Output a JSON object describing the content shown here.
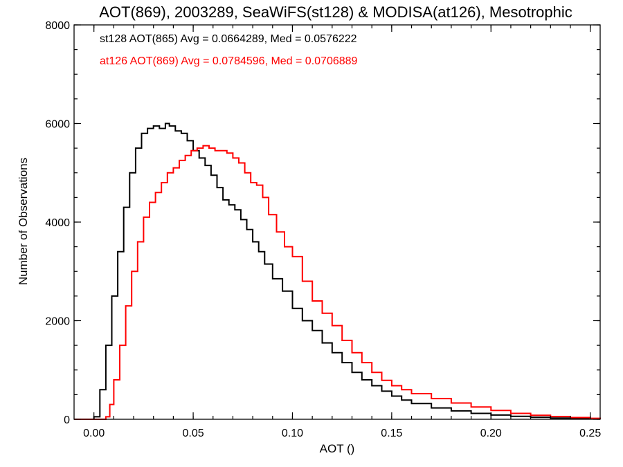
{
  "chart_data": {
    "type": "line",
    "title": "AOT(869), 2003289, SeaWiFS(st128) & MODISA(at126), Mesotrophic",
    "xlabel": "AOT ()",
    "ylabel": "Number of Observations",
    "xlim": [
      -0.01,
      0.255
    ],
    "ylim": [
      0,
      8000
    ],
    "xticks": [
      0.0,
      0.05,
      0.1,
      0.15,
      0.2,
      0.25
    ],
    "xtick_labels": [
      "0.00",
      "0.05",
      "0.10",
      "0.15",
      "0.20",
      "0.25"
    ],
    "yticks": [
      0,
      2000,
      4000,
      6000,
      8000
    ],
    "ytick_labels": [
      "0",
      "2000",
      "4000",
      "6000",
      "8000"
    ],
    "grid": false,
    "annotations": [
      {
        "text": "st128 AOT(865) Avg = 0.0664289, Med = 0.0576222",
        "color": "#000000"
      },
      {
        "text": "at126 AOT(869) Avg = 0.0784596, Med = 0.0706889",
        "color": "#ff0000"
      }
    ],
    "series": [
      {
        "color": "#000000",
        "style": "step",
        "x": [
          -0.01,
          0.0,
          0.003,
          0.006,
          0.009,
          0.012,
          0.015,
          0.018,
          0.021,
          0.024,
          0.027,
          0.03,
          0.033,
          0.036,
          0.038,
          0.041,
          0.044,
          0.047,
          0.05,
          0.053,
          0.056,
          0.059,
          0.062,
          0.065,
          0.068,
          0.071,
          0.074,
          0.077,
          0.08,
          0.083,
          0.086,
          0.09,
          0.095,
          0.1,
          0.105,
          0.11,
          0.115,
          0.12,
          0.125,
          0.13,
          0.135,
          0.14,
          0.145,
          0.15,
          0.155,
          0.16,
          0.17,
          0.18,
          0.19,
          0.2,
          0.21,
          0.22,
          0.23,
          0.24,
          0.25,
          0.255
        ],
        "y": [
          0,
          50,
          600,
          1500,
          2500,
          3400,
          4300,
          5000,
          5500,
          5800,
          5900,
          5950,
          5900,
          6000,
          5950,
          5850,
          5800,
          5650,
          5450,
          5300,
          5150,
          4950,
          4700,
          4450,
          4350,
          4250,
          4050,
          3850,
          3600,
          3400,
          3150,
          2850,
          2600,
          2250,
          2000,
          1800,
          1550,
          1350,
          1150,
          950,
          800,
          680,
          570,
          470,
          390,
          320,
          230,
          170,
          120,
          85,
          60,
          40,
          25,
          15,
          8,
          5
        ]
      },
      {
        "color": "#ff0000",
        "style": "step",
        "x": [
          -0.01,
          0.006,
          0.008,
          0.01,
          0.013,
          0.016,
          0.019,
          0.022,
          0.025,
          0.028,
          0.031,
          0.034,
          0.037,
          0.04,
          0.043,
          0.046,
          0.049,
          0.052,
          0.055,
          0.058,
          0.061,
          0.064,
          0.067,
          0.07,
          0.073,
          0.076,
          0.079,
          0.082,
          0.085,
          0.088,
          0.092,
          0.096,
          0.1,
          0.105,
          0.11,
          0.115,
          0.12,
          0.125,
          0.13,
          0.135,
          0.14,
          0.145,
          0.15,
          0.155,
          0.16,
          0.17,
          0.18,
          0.19,
          0.2,
          0.21,
          0.22,
          0.23,
          0.24,
          0.25,
          0.255
        ],
        "y": [
          0,
          50,
          300,
          800,
          1500,
          2300,
          3000,
          3600,
          4100,
          4400,
          4600,
          4800,
          5000,
          5100,
          5250,
          5350,
          5450,
          5500,
          5550,
          5500,
          5450,
          5450,
          5400,
          5300,
          5200,
          5000,
          4800,
          4750,
          4500,
          4150,
          3800,
          3500,
          3300,
          2800,
          2400,
          2150,
          1900,
          1600,
          1350,
          1150,
          950,
          790,
          680,
          600,
          520,
          420,
          330,
          250,
          180,
          120,
          80,
          55,
          35,
          20,
          10
        ]
      }
    ]
  }
}
